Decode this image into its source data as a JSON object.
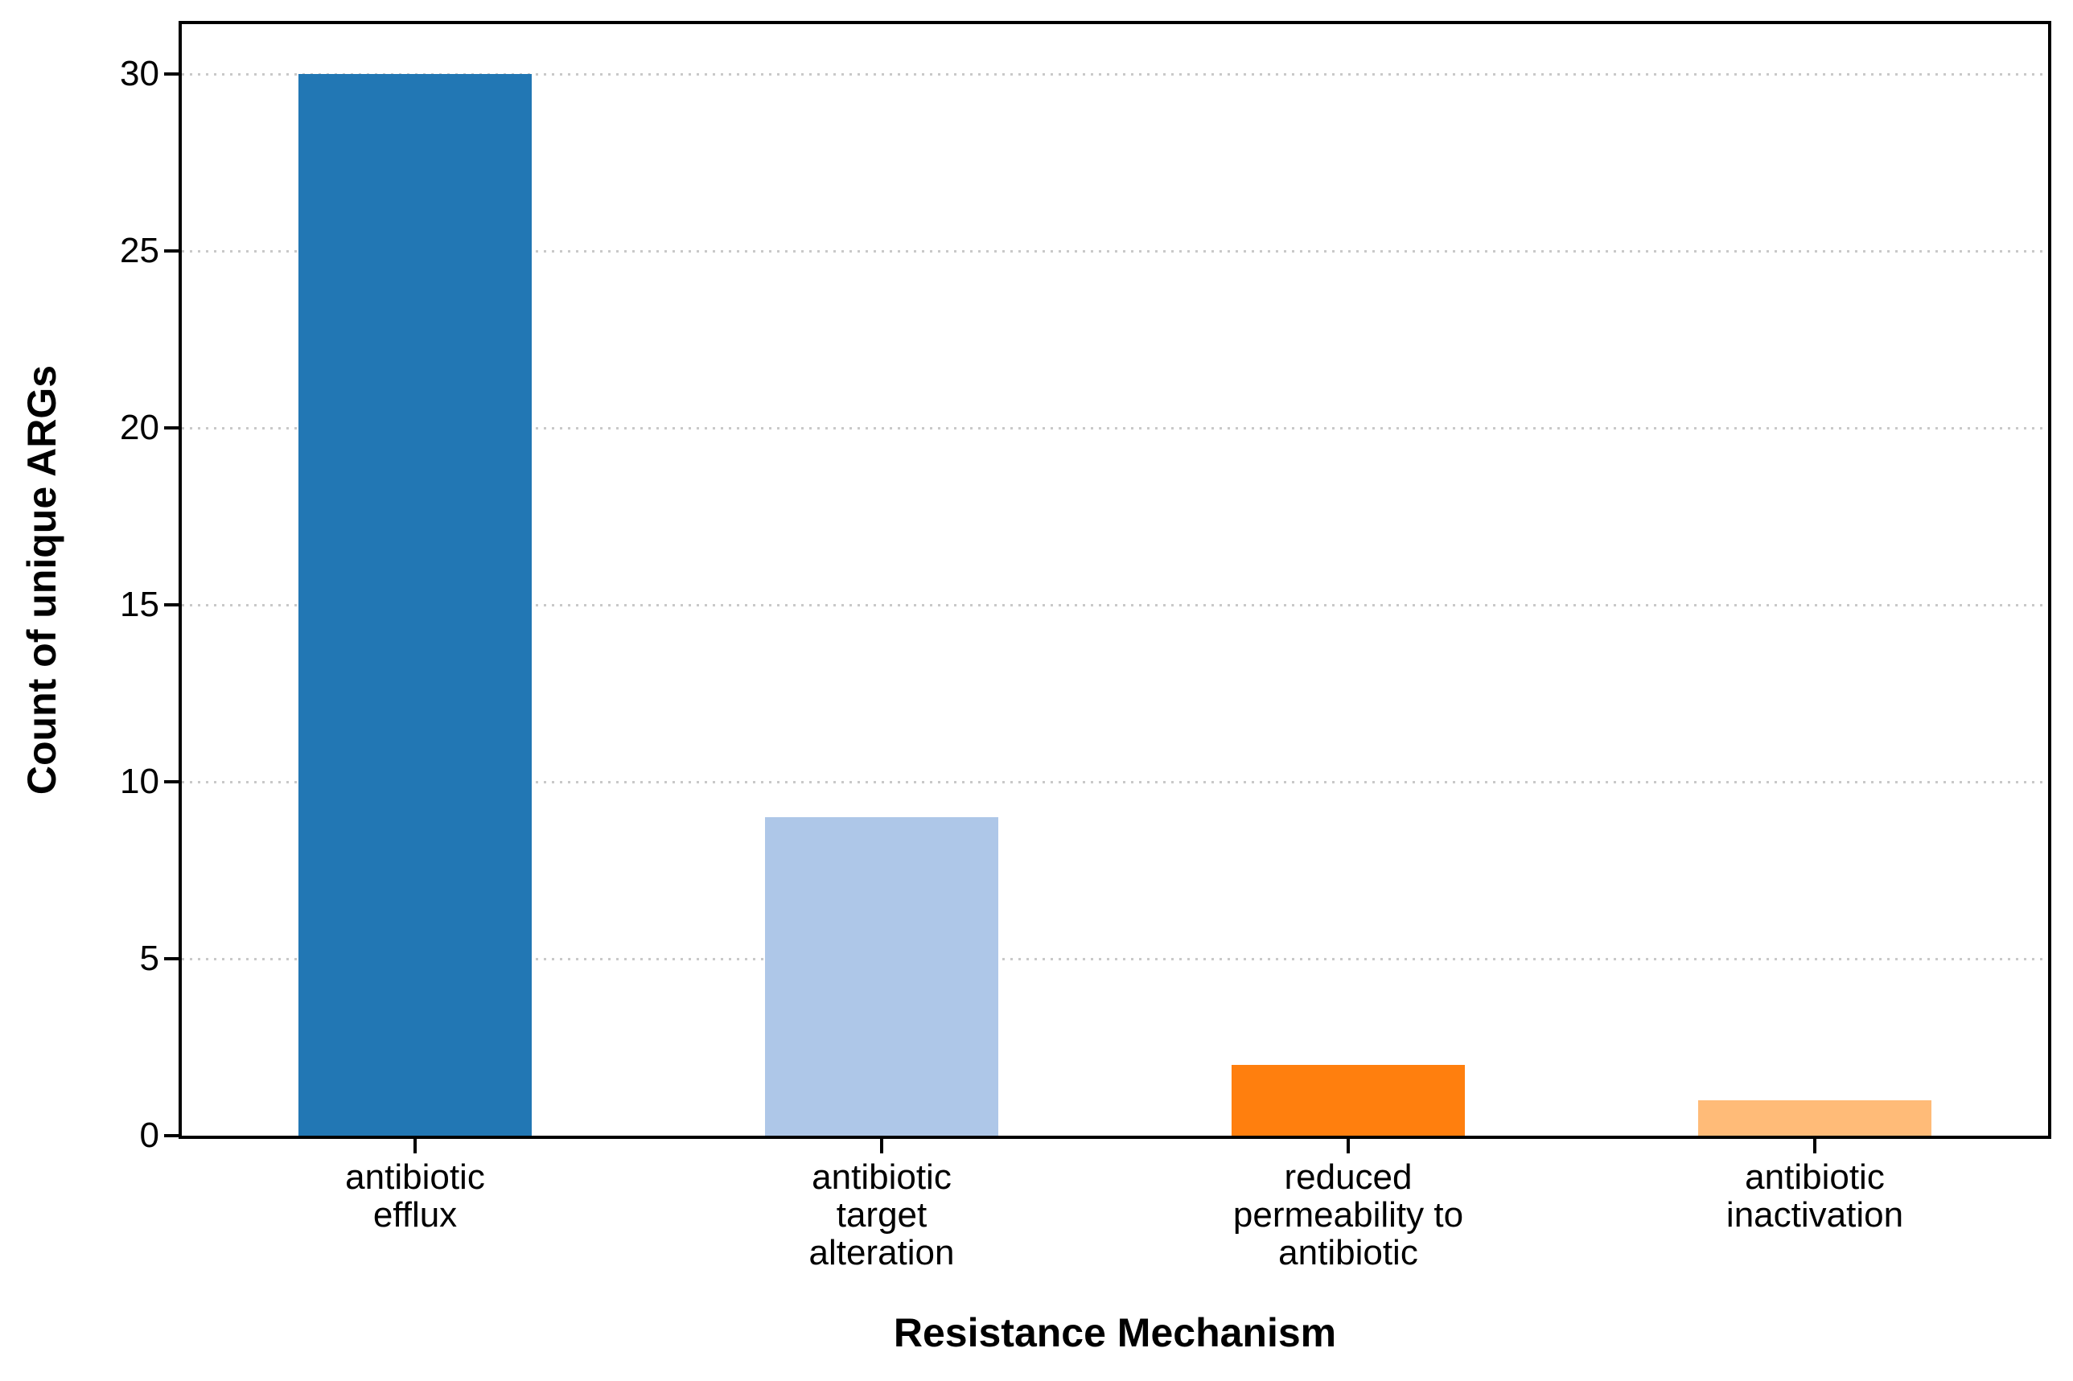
{
  "chart_data": {
    "type": "bar",
    "title": "",
    "xlabel": "Resistance Mechanism",
    "ylabel": "Count of unique ARGs",
    "categories": [
      "antibiotic efflux",
      "antibiotic target alteration",
      "reduced permeability to antibiotic",
      "antibiotic inactivation"
    ],
    "category_lines": [
      [
        "antibiotic",
        "efflux"
      ],
      [
        "antibiotic",
        "target",
        "alteration"
      ],
      [
        "reduced",
        "permeability to",
        "antibiotic"
      ],
      [
        "antibiotic",
        "inactivation"
      ]
    ],
    "values": [
      30,
      9,
      2,
      1
    ],
    "bar_colors": [
      "#2277b4",
      "#aec7e8",
      "#ff7f0e",
      "#ffbb78"
    ],
    "yticks": [
      0,
      5,
      10,
      15,
      20,
      25,
      30
    ],
    "ylim": [
      0,
      31.4
    ],
    "grid": "horizontal dotted lines at y ticks",
    "grid_color": "#c9c9c9",
    "axis_border_color": "#000000",
    "background_color": "#ffffff",
    "legend": "none"
  }
}
